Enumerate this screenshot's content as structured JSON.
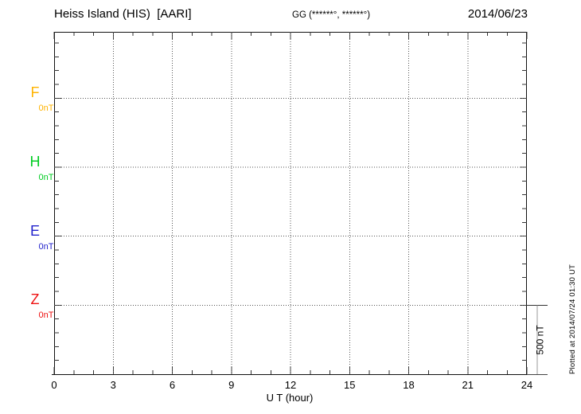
{
  "header": {
    "station_title": "Heiss Island (HIS)  [AARI]",
    "coords_text": "GG (******°, ******°)",
    "date": "2014/06/23"
  },
  "channels": [
    {
      "label": "F",
      "baseline_label": "0nT",
      "color": "#FFB300"
    },
    {
      "label": "H",
      "baseline_label": "0nT",
      "color": "#00CC22"
    },
    {
      "label": "E",
      "baseline_label": "0nT",
      "color": "#2222CC"
    },
    {
      "label": "Z",
      "baseline_label": "0nT",
      "color": "#EE1111"
    }
  ],
  "axis": {
    "xlabel": "U T (hour)",
    "x_ticks": [
      0,
      3,
      6,
      9,
      12,
      15,
      18,
      21,
      24
    ],
    "x_minor_step_hours": 1,
    "x_range": [
      0,
      24
    ]
  },
  "scale_bar": {
    "label": "500 nT",
    "nT": 500
  },
  "footer_note": "Plotted at 2014/07/24 01:30 UT",
  "chart_data": {
    "type": "line",
    "title": "Heiss Island (HIS)  [AARI]",
    "subtitle": "GG (******°, ******°)",
    "date": "2014/06/23",
    "xlabel": "U T (hour)",
    "x_range_hours": [
      0,
      24
    ],
    "x_major_ticks": [
      0,
      3,
      6,
      9,
      12,
      15,
      18,
      21,
      24
    ],
    "x_minor_tick_step_hours": 1,
    "grid": "dotted vertical lines every 3 h; dotted horizontal line at each channel 0 nT baseline",
    "legend_position": "left margin (channel letters stacked)",
    "y_tick_step_nT": 100,
    "channel_offset_nT": 500,
    "scale_bar_nT": 500,
    "series": [
      {
        "name": "F",
        "color": "#FFB300",
        "baseline_nT": 0,
        "values": []
      },
      {
        "name": "H",
        "color": "#00CC22",
        "baseline_nT": 0,
        "values": []
      },
      {
        "name": "E",
        "color": "#2222CC",
        "baseline_nT": 0,
        "values": []
      },
      {
        "name": "Z",
        "color": "#EE1111",
        "baseline_nT": 0,
        "values": []
      }
    ],
    "note_visible_data": "no trace data plotted; only flat 0 nT reference baselines are shown",
    "plotted_at": "Plotted at 2014/07/24 01:30 UT"
  }
}
